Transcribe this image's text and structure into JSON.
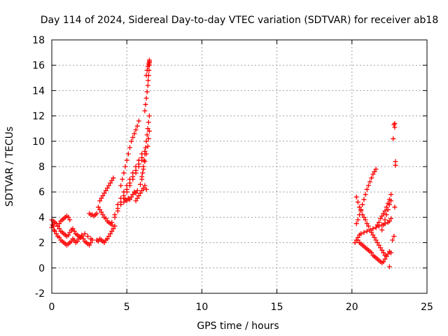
{
  "chart_data": {
    "type": "scatter",
    "title": "Day 114 of 2024, Sidereal Day-to-day VTEC variation (SDTVAR) for receiver ab18",
    "xlabel": "GPS time / hours",
    "ylabel": "SDTVAR / TECUs",
    "xlim": [
      0,
      25
    ],
    "ylim": [
      -2,
      18
    ],
    "xticks": [
      0,
      5,
      10,
      15,
      20,
      25
    ],
    "yticks": [
      -2,
      0,
      2,
      4,
      6,
      8,
      10,
      12,
      14,
      16,
      18
    ],
    "xtick_labels": [
      "0",
      "5",
      "10",
      "15",
      "20",
      "25"
    ],
    "ytick_labels": [
      "-2",
      "0",
      "2",
      "4",
      "6",
      "8",
      "10",
      "12",
      "14",
      "16",
      "18"
    ],
    "grid": true,
    "marker": "+",
    "color": "#ff0000",
    "series": [
      {
        "name": "SDTVAR",
        "x": [
          0.0,
          0.05,
          0.1,
          0.15,
          0.2,
          0.3,
          0.4,
          0.5,
          0.6,
          0.7,
          0.8,
          0.9,
          1.0,
          1.1,
          1.2,
          1.3,
          1.4,
          1.5,
          1.6,
          1.7,
          1.8,
          1.9,
          2.0,
          2.1,
          2.2,
          2.3,
          2.4,
          2.5,
          2.6,
          2.7,
          0.0,
          0.1,
          0.2,
          0.3,
          0.4,
          0.5,
          0.6,
          0.7,
          0.8,
          0.9,
          1.0,
          1.1,
          1.2,
          1.3,
          1.4,
          1.5,
          1.6,
          1.7,
          1.8,
          1.9,
          2.0,
          2.2,
          2.4,
          2.6,
          0.4,
          0.5,
          0.6,
          0.7,
          0.8,
          0.9,
          1.0,
          1.1,
          1.2,
          2.5,
          2.6,
          2.7,
          2.8,
          2.9,
          3.0,
          3.0,
          3.1,
          3.2,
          3.3,
          3.4,
          3.5,
          3.6,
          3.7,
          3.8,
          3.9,
          4.0,
          4.1,
          4.2,
          3.1,
          3.2,
          3.3,
          3.4,
          3.5,
          3.6,
          3.7,
          3.8,
          3.9,
          4.0,
          3.2,
          3.3,
          3.4,
          3.5,
          3.6,
          3.7,
          3.8,
          3.9,
          4.0,
          4.1,
          4.0,
          4.2,
          4.4,
          4.6,
          4.8,
          5.0,
          5.2,
          5.4,
          5.6,
          5.8,
          6.0,
          4.2,
          4.4,
          4.6,
          4.8,
          5.0,
          5.2,
          5.4,
          5.6,
          5.8,
          6.0,
          6.2,
          4.4,
          4.6,
          4.8,
          5.0,
          5.2,
          5.4,
          5.6,
          5.8,
          6.0,
          4.6,
          4.7,
          4.8,
          4.9,
          5.0,
          5.1,
          5.2,
          5.3,
          5.4,
          5.5,
          5.6,
          5.7,
          5.8,
          4.8,
          4.9,
          5.0,
          5.1,
          5.2,
          5.3,
          5.4,
          5.5,
          5.6,
          5.7,
          5.6,
          5.7,
          5.8,
          5.9,
          6.0,
          6.1,
          6.2,
          6.3,
          5.9,
          6.0,
          6.05,
          6.1,
          6.15,
          6.2,
          6.25,
          6.3,
          6.35,
          6.4,
          6.45,
          6.5,
          6.0,
          6.1,
          6.2,
          6.3,
          6.4,
          6.45,
          6.5,
          6.2,
          6.25,
          6.3,
          6.35,
          6.4,
          6.42,
          6.45,
          6.48,
          6.5,
          6.5,
          6.5,
          6.3,
          6.35,
          6.4,
          6.45,
          6.5,
          20.3,
          20.4,
          20.5,
          20.6,
          20.7,
          20.8,
          20.9,
          21.0,
          21.1,
          21.2,
          21.3,
          21.4,
          21.5,
          21.6,
          21.7,
          21.8,
          21.9,
          22.0,
          22.1,
          22.2,
          20.2,
          20.3,
          20.4,
          20.5,
          20.6,
          20.8,
          21.0,
          21.2,
          21.4,
          21.6,
          21.8,
          22.0,
          22.2,
          22.4,
          22.5,
          22.6,
          20.3,
          20.4,
          20.5,
          20.6,
          20.7,
          20.8,
          20.9,
          21.0,
          21.1,
          21.2,
          21.3,
          21.4,
          21.5,
          21.6,
          20.4,
          20.5,
          20.6,
          20.7,
          20.8,
          20.9,
          21.0,
          21.1,
          21.2,
          21.3,
          21.4,
          21.5,
          21.6,
          21.7,
          21.8,
          21.9,
          22.0,
          22.1,
          22.2,
          22.3,
          22.4,
          22.5,
          21.6,
          21.7,
          21.8,
          21.9,
          22.0,
          22.1,
          22.2,
          22.3,
          22.4,
          22.5,
          22.6,
          22.0,
          22.1,
          22.2,
          22.3,
          22.4,
          22.5,
          22.6,
          22.5,
          22.6,
          22.7,
          22.8,
          22.85,
          22.9,
          22.9,
          22.85,
          22.8,
          22.75,
          22.85
        ],
        "y": [
          3.2,
          3.4,
          3.3,
          3.0,
          2.9,
          2.7,
          2.5,
          2.4,
          2.2,
          2.1,
          2.0,
          1.9,
          1.8,
          1.9,
          2.0,
          2.1,
          2.3,
          2.2,
          2.0,
          2.1,
          2.3,
          2.4,
          2.5,
          2.3,
          2.1,
          2.0,
          1.9,
          1.8,
          2.0,
          2.2,
          3.8,
          3.7,
          3.6,
          3.5,
          3.3,
          3.1,
          2.9,
          2.8,
          2.7,
          2.6,
          2.5,
          2.6,
          2.8,
          3.0,
          3.1,
          2.9,
          2.7,
          2.6,
          2.5,
          2.4,
          2.6,
          2.7,
          2.5,
          2.3,
          3.3,
          3.5,
          3.7,
          3.8,
          3.9,
          4.0,
          4.1,
          4.0,
          3.8,
          4.3,
          4.2,
          4.2,
          4.1,
          4.2,
          4.3,
          2.2,
          2.1,
          2.3,
          2.2,
          2.1,
          2.0,
          2.2,
          2.3,
          2.5,
          2.7,
          2.9,
          3.1,
          3.3,
          4.8,
          4.6,
          4.4,
          4.2,
          4.0,
          3.9,
          3.7,
          3.6,
          3.5,
          3.4,
          5.3,
          5.5,
          5.7,
          5.9,
          6.1,
          6.3,
          6.5,
          6.7,
          6.9,
          7.1,
          3.6,
          4.0,
          4.5,
          5.0,
          5.5,
          6.0,
          6.5,
          7.0,
          7.5,
          8.0,
          8.5,
          4.2,
          4.7,
          5.2,
          5.7,
          6.2,
          6.7,
          7.2,
          7.7,
          8.2,
          8.7,
          9.2,
          5.0,
          5.5,
          6.0,
          6.5,
          7.0,
          7.5,
          8.0,
          8.5,
          9.0,
          6.5,
          7.0,
          7.5,
          8.0,
          8.5,
          9.0,
          9.5,
          10.0,
          10.3,
          10.6,
          10.9,
          11.2,
          11.6,
          5.2,
          5.4,
          5.3,
          5.5,
          5.4,
          5.6,
          5.8,
          6.0,
          5.9,
          6.1,
          5.3,
          5.5,
          5.7,
          5.9,
          6.1,
          6.3,
          6.5,
          6.2,
          6.6,
          7.0,
          7.5,
          8.0,
          8.5,
          9.0,
          9.5,
          10.0,
          10.5,
          11.0,
          11.5,
          12.0,
          7.2,
          7.8,
          8.4,
          9.0,
          9.6,
          10.2,
          10.8,
          12.4,
          12.9,
          13.4,
          13.9,
          14.4,
          14.8,
          15.2,
          15.6,
          16.0,
          16.2,
          16.4,
          15.2,
          15.6,
          15.9,
          16.1,
          16.3,
          5.6,
          5.2,
          4.8,
          4.5,
          4.2,
          4.0,
          3.8,
          3.5,
          3.3,
          3.0,
          2.8,
          2.6,
          2.4,
          2.2,
          2.0,
          1.8,
          1.6,
          1.4,
          1.2,
          1.0,
          2.0,
          2.2,
          2.4,
          2.6,
          2.7,
          2.8,
          2.9,
          3.0,
          3.1,
          3.2,
          3.3,
          3.4,
          3.5,
          3.6,
          3.7,
          3.9,
          3.5,
          3.8,
          4.2,
          4.6,
          5.0,
          5.4,
          5.8,
          6.2,
          6.5,
          6.8,
          7.1,
          7.4,
          7.6,
          7.8,
          2.2,
          2.0,
          1.9,
          1.8,
          1.7,
          1.6,
          1.5,
          1.4,
          1.3,
          1.2,
          1.0,
          0.9,
          0.8,
          0.7,
          0.6,
          0.5,
          0.4,
          0.5,
          0.7,
          0.9,
          1.1,
          1.3,
          3.2,
          3.4,
          3.6,
          3.9,
          4.1,
          4.3,
          4.5,
          4.8,
          5.1,
          5.4,
          5.8,
          3.0,
          3.4,
          3.8,
          4.2,
          4.6,
          5.0,
          5.3,
          0.1,
          1.2,
          2.2,
          2.5,
          4.8,
          8.1,
          8.4,
          11.1,
          11.3,
          10.2,
          11.4
        ]
      }
    ]
  }
}
